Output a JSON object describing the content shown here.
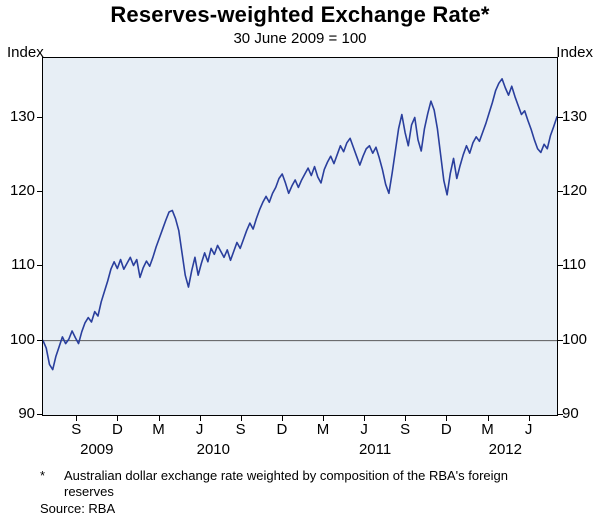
{
  "chart_data": {
    "type": "line",
    "title": "Reserves-weighted Exchange Rate*",
    "subtitle": "30 June 2009 = 100",
    "y_unit": "Index",
    "ylim": [
      90,
      138
    ],
    "yticks": [
      90,
      100,
      110,
      120,
      130
    ],
    "reference_line": 100,
    "grid": "off",
    "legend": "none",
    "x_domain_months": [
      0,
      37.5
    ],
    "x_ticks": [
      {
        "label": "S",
        "month": 2
      },
      {
        "label": "D",
        "month": 5
      },
      {
        "label": "M",
        "month": 8
      },
      {
        "label": "J",
        "month": 11
      },
      {
        "label": "S",
        "month": 14
      },
      {
        "label": "D",
        "month": 17
      },
      {
        "label": "M",
        "month": 20
      },
      {
        "label": "J",
        "month": 23
      },
      {
        "label": "S",
        "month": 26
      },
      {
        "label": "D",
        "month": 29
      },
      {
        "label": "M",
        "month": 32
      },
      {
        "label": "J",
        "month": 35
      }
    ],
    "year_labels": [
      {
        "label": "2009",
        "month": 4.0
      },
      {
        "label": "2010",
        "month": 12.5
      },
      {
        "label": "2011",
        "month": 24.3
      },
      {
        "label": "2012",
        "month": 33.8
      }
    ],
    "colors": {
      "line": "#2a3f9d",
      "plot_bg": "#e7eef5",
      "frame": "#000000",
      "ref_line": "#5a5a5a"
    },
    "series": [
      {
        "name": "Reserves-weighted exchange rate index",
        "color": "#2a3f9d",
        "values": [
          100.0,
          99.0,
          96.8,
          96.1,
          97.9,
          99.2,
          100.5,
          99.6,
          100.2,
          101.3,
          100.4,
          99.6,
          101.2,
          102.4,
          103.1,
          102.5,
          103.9,
          103.3,
          105.2,
          106.6,
          108.0,
          109.6,
          110.6,
          109.7,
          110.9,
          109.6,
          110.4,
          111.2,
          110.1,
          110.9,
          108.5,
          109.8,
          110.7,
          110.0,
          111.2,
          112.6,
          113.8,
          115.0,
          116.2,
          117.3,
          117.5,
          116.4,
          114.8,
          111.8,
          108.8,
          107.2,
          109.4,
          111.2,
          108.8,
          110.4,
          111.8,
          110.6,
          112.4,
          111.6,
          112.8,
          112.0,
          111.2,
          112.2,
          110.8,
          112.0,
          113.2,
          112.4,
          113.6,
          114.8,
          115.8,
          115.0,
          116.4,
          117.6,
          118.6,
          119.4,
          118.6,
          119.8,
          120.6,
          121.8,
          122.4,
          121.2,
          119.8,
          120.8,
          121.6,
          120.6,
          121.6,
          122.4,
          123.2,
          122.2,
          123.4,
          122.0,
          121.2,
          123.0,
          124.0,
          124.8,
          123.8,
          125.0,
          126.2,
          125.4,
          126.6,
          127.2,
          126.0,
          124.8,
          123.6,
          124.8,
          125.8,
          126.2,
          125.2,
          126.0,
          124.6,
          123.0,
          121.0,
          119.8,
          122.5,
          125.5,
          128.5,
          130.4,
          128.0,
          126.2,
          129.0,
          130.0,
          127.0,
          125.5,
          128.5,
          130.5,
          132.2,
          131.0,
          128.5,
          125.0,
          121.5,
          119.6,
          122.5,
          124.5,
          121.8,
          123.5,
          125.0,
          126.2,
          125.2,
          126.6,
          127.4,
          126.8,
          128.0,
          129.2,
          130.6,
          132.0,
          133.6,
          134.6,
          135.2,
          134.0,
          133.0,
          134.2,
          132.8,
          131.6,
          130.4,
          130.9,
          129.6,
          128.4,
          127.0,
          125.8,
          125.3,
          126.4,
          125.8,
          127.6,
          128.8,
          130.1
        ]
      }
    ]
  },
  "footnote": {
    "marker": "*",
    "text": "Australian dollar exchange rate weighted by composition of the RBA's foreign reserves",
    "source": "Source: RBA"
  }
}
